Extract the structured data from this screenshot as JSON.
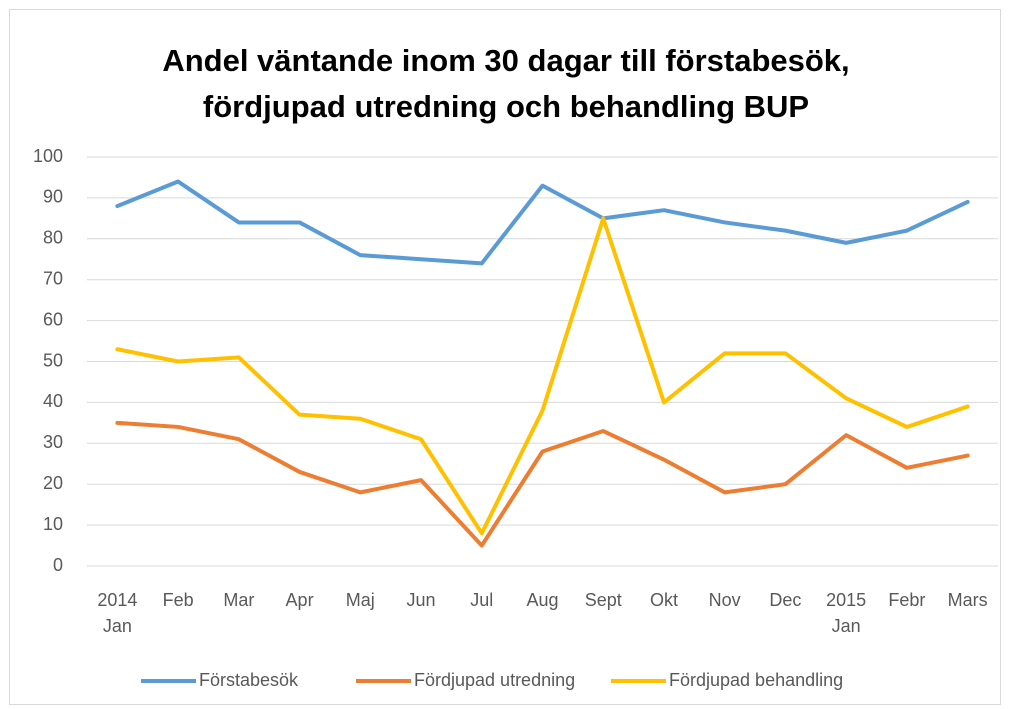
{
  "chart_data": {
    "type": "line",
    "title": "Andel väntande inom 30 dagar  till förstabesök,\nfördjupad  utredning och behandling BUP",
    "categories": [
      "2014\nJan",
      "Feb",
      "Mar",
      "Apr",
      "Maj",
      "Jun",
      "Jul",
      "Aug",
      "Sept",
      "Okt",
      "Nov",
      "Dec",
      "2015\nJan",
      "Febr",
      "Mars"
    ],
    "series": [
      {
        "name": "Förstabesök",
        "color": "#5b9bd5",
        "values": [
          88,
          94,
          84,
          84,
          76,
          75,
          74,
          93,
          85,
          87,
          84,
          82,
          79,
          82,
          89
        ]
      },
      {
        "name": "Fördjupad utredning",
        "color": "#ed7d31",
        "values": [
          35,
          34,
          31,
          23,
          18,
          21,
          5,
          28,
          33,
          26,
          18,
          20,
          32,
          24,
          27
        ]
      },
      {
        "name": "Fördjupad behandling",
        "color": "#ffc000",
        "values": [
          53,
          50,
          51,
          37,
          36,
          31,
          8,
          38,
          85,
          40,
          52,
          52,
          41,
          34,
          39
        ]
      }
    ],
    "ylim": [
      0,
      100
    ],
    "yticks": [
      0,
      10,
      20,
      30,
      40,
      50,
      60,
      70,
      80,
      90,
      100
    ],
    "grid": true,
    "legend": "bottom"
  }
}
